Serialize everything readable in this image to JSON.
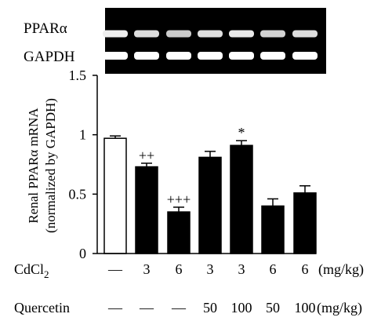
{
  "gel": {
    "bands": [
      {
        "label": "PPARα",
        "intensities": [
          0.85,
          0.7,
          0.55,
          0.72,
          0.8,
          0.62,
          0.7
        ]
      },
      {
        "label": "GAPDH",
        "intensities": [
          1,
          1,
          1,
          1,
          1,
          1,
          1
        ]
      }
    ]
  },
  "chart_data": {
    "type": "bar",
    "ylabel_line1": "Renal PPARα mRNA",
    "ylabel_line2": "(normalized by GAPDH)",
    "ylim": [
      0,
      1.5
    ],
    "yticks": [
      {
        "value": 0,
        "label": "0"
      },
      {
        "value": 0.5,
        "label": "0.5"
      },
      {
        "value": 1,
        "label": "1"
      },
      {
        "value": 1.5,
        "label": "1.5"
      }
    ],
    "values": [
      0.97,
      0.73,
      0.35,
      0.81,
      0.91,
      0.4,
      0.51
    ],
    "errors": [
      0.02,
      0.03,
      0.04,
      0.05,
      0.04,
      0.06,
      0.06
    ],
    "bar_colors": [
      "#ffffff",
      "#000000",
      "#000000",
      "#000000",
      "#000000",
      "#000000",
      "#000000"
    ],
    "significance": [
      "",
      "++",
      "+++",
      "",
      "*",
      "",
      ""
    ],
    "rows": [
      {
        "label": "CdCl2",
        "label_main": "CdCl",
        "label_sub": "2",
        "values": [
          "—",
          "3",
          "6",
          "3",
          "3",
          "6",
          "6"
        ],
        "unit": "(mg/kg)"
      },
      {
        "label": "Quercetin",
        "values": [
          "—",
          "—",
          "—",
          "50",
          "100",
          "50",
          "100"
        ],
        "unit": "(mg/kg)"
      }
    ]
  }
}
